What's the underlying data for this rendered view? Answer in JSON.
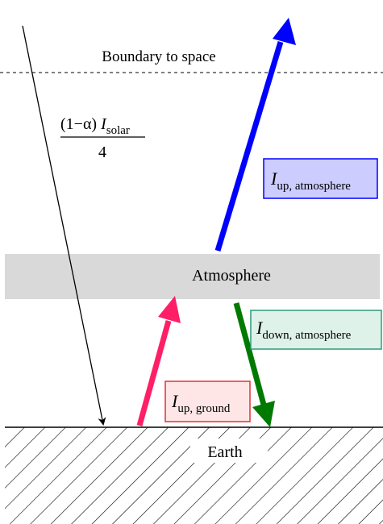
{
  "boundary_label": "Boundary to space",
  "atmosphere_label": "Atmosphere",
  "earth_label": "Earth",
  "solar_flux": {
    "numerator_prefix": "(1−α) ",
    "symbol": "I",
    "subscript": "solar",
    "denominator": "4"
  },
  "fluxes": {
    "up_atmosphere": {
      "symbol": "I",
      "subscript": "up, atmosphere",
      "color": "#0000ff",
      "box_fill": "#ccccff",
      "box_stroke": "#0000ff"
    },
    "down_atmosphere": {
      "symbol": "I",
      "subscript": "down, atmosphere",
      "color": "#007a00",
      "box_fill": "#dff2ea",
      "box_stroke": "#2f9a7a"
    },
    "up_ground": {
      "symbol": "I",
      "subscript": "up, ground",
      "color": "#ff1f66",
      "box_fill": "#ffe6e6",
      "box_stroke": "#e0303a"
    }
  },
  "colors": {
    "atmosphere_band": "#d9d9d9",
    "hatch": "#000000"
  }
}
